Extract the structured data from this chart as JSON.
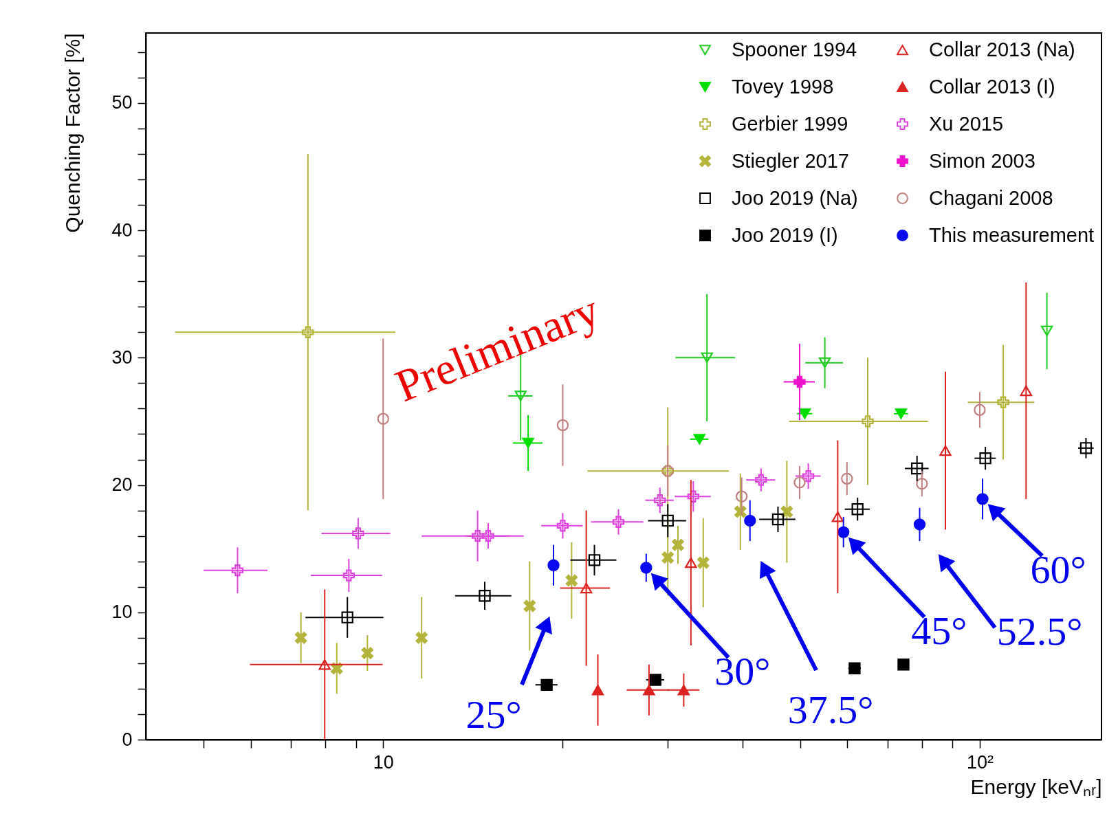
{
  "chart_data": {
    "type": "scatter",
    "xlabel": "Energy [keVₙᵣ]",
    "ylabel": "Quenching Factor [%]",
    "log": "x",
    "legend": "top right",
    "xlim": [
      4,
      160
    ],
    "ylim": [
      0,
      55.5
    ],
    "xticks": [
      {
        "value": 5,
        "label": null
      },
      {
        "value": 6,
        "label": null
      },
      {
        "value": 7,
        "label": null
      },
      {
        "value": 8,
        "label": null
      },
      {
        "value": 9,
        "label": null
      },
      10,
      {
        "value": 20,
        "label": null
      },
      {
        "value": 30,
        "label": null
      },
      {
        "value": 40,
        "label": null
      },
      {
        "value": 50,
        "label": null
      },
      {
        "value": 60,
        "label": null
      },
      {
        "value": 70,
        "label": null
      },
      {
        "value": 80,
        "label": null
      },
      {
        "value": 90,
        "label": null
      },
      {
        "value": 100,
        "label": "10²"
      }
    ],
    "yticks": [
      0,
      {
        "value": 2,
        "label": null
      },
      {
        "value": 4,
        "label": null
      },
      {
        "value": 6,
        "label": null
      },
      {
        "value": 8,
        "label": null
      },
      10,
      {
        "value": 12,
        "label": null
      },
      {
        "value": 14,
        "label": null
      },
      {
        "value": 16,
        "label": null
      },
      {
        "value": 18,
        "label": null
      },
      20,
      {
        "value": 22,
        "label": null
      },
      {
        "value": 24,
        "label": null
      },
      {
        "value": 26,
        "label": null
      },
      {
        "value": 28,
        "label": null
      },
      30,
      {
        "value": 32,
        "label": null
      },
      {
        "value": 34,
        "label": null
      },
      {
        "value": 36,
        "label": null
      },
      {
        "value": 38,
        "label": null
      },
      40,
      {
        "value": 42,
        "label": null
      },
      {
        "value": 44,
        "label": null
      },
      {
        "value": 46,
        "label": null
      },
      {
        "value": 48,
        "label": null
      },
      50,
      {
        "value": 52,
        "label": null
      },
      {
        "value": 54,
        "label": null
      }
    ],
    "series": [
      {
        "name": "Spooner 1994",
        "color": "#22cc22",
        "marker": "triangle-down-open",
        "x": [
          17.0,
          34.9,
          55.0,
          129.6
        ],
        "values": [
          27.0,
          30.0,
          29.6,
          32.1
        ],
        "errors": [
          3.5,
          5.0,
          2.0,
          3.0
        ],
        "xerrors": [
          0.8,
          4.0,
          4.0,
          null
        ]
      },
      {
        "name": "Tovey 1998",
        "color": "#00dd00",
        "marker": "triangle-down",
        "x": [
          17.5,
          33.9,
          50.9,
          73.8
        ],
        "values": [
          23.3,
          23.6,
          25.6,
          25.6
        ],
        "errors": [
          2.2,
          null,
          null,
          null
        ],
        "xerrors": [
          1.0,
          1.2,
          1.5,
          2.0
        ]
      },
      {
        "name": "Gerbier 1999",
        "color": "#b4b43c",
        "marker": "cross-open",
        "x": [
          7.48,
          30.0,
          64.9,
          109.5
        ],
        "values": [
          32.0,
          21.1,
          25.0,
          26.5
        ],
        "errors": [
          14.0,
          5.0,
          5.0,
          4.5
        ],
        "xerrors": [
          3.0,
          8.0,
          17.0,
          14.0
        ]
      },
      {
        "name": "Stiegler 2017",
        "color": "#b4b43c",
        "marker": "x",
        "x": [
          7.28,
          8.36,
          9.41,
          11.6,
          17.6,
          20.7,
          30.0,
          31.2,
          34.4,
          39.7,
          47.5
        ],
        "values": [
          8.0,
          5.6,
          6.8,
          8.0,
          10.5,
          12.5,
          14.3,
          15.3,
          13.9,
          17.9,
          17.9
        ],
        "errors": [
          2.0,
          2.0,
          1.4,
          3.2,
          3.5,
          3.0,
          3.0,
          1.5,
          3.5,
          3.0,
          4.0
        ]
      },
      {
        "name": "Joo 2019 (Na)",
        "color": "#000000",
        "marker": "square-open",
        "x": [
          8.71,
          14.8,
          22.6,
          30.0,
          45.9,
          62.4,
          78.5,
          102.2,
          150.7
        ],
        "values": [
          9.6,
          11.3,
          14.1,
          17.2,
          17.3,
          18.1,
          21.3,
          22.1,
          22.9
        ],
        "errors": [
          1.6,
          1.1,
          1.2,
          1.3,
          1.0,
          0.9,
          1.0,
          0.9,
          0.8
        ],
        "xerrors": [
          1.3,
          1.6,
          2.0,
          2.2,
          3.2,
          3.0,
          3.6,
          4.2,
          4.5
        ]
      },
      {
        "name": "Joo 2019 (I)",
        "color": "#000000",
        "marker": "square",
        "x": [
          18.8,
          28.6,
          61.7,
          74.5
        ],
        "values": [
          4.3,
          4.7,
          5.6,
          5.9
        ],
        "errors": [
          0.3,
          0.3,
          0.3,
          0.3
        ],
        "xerrors": [
          0.8,
          1.0,
          1.5,
          1.5
        ]
      },
      {
        "name": "Collar 2013 (Na)",
        "color": "#dd2222",
        "marker": "triangle-open",
        "x": [
          7.98,
          21.9,
          32.8,
          57.8,
          87.6,
          119.6
        ],
        "values": [
          5.9,
          11.9,
          13.9,
          17.5,
          22.7,
          27.4
        ],
        "errors": [
          5.9,
          6.1,
          6.5,
          6.0,
          6.2,
          8.5
        ],
        "xerrors": [
          2.0,
          2.1,
          null,
          null,
          null,
          null
        ]
      },
      {
        "name": "Collar 2013 (I)",
        "color": "#dd2222",
        "marker": "triangle",
        "x": [
          22.9,
          27.9,
          31.9
        ],
        "values": [
          3.9,
          3.9,
          3.9
        ],
        "errors": [
          2.8,
          2.0,
          1.3
        ],
        "xerrors": [
          null,
          2.3,
          2.0
        ]
      },
      {
        "name": "Xu 2015",
        "color": "#dd44dd",
        "marker": "cross-open",
        "x": [
          5.7,
          8.76,
          9.08,
          14.4,
          15.0,
          20.0,
          24.8,
          29.1,
          33.1,
          43.0,
          51.6
        ],
        "values": [
          13.3,
          12.9,
          16.2,
          16.0,
          16.0,
          16.8,
          17.1,
          18.8,
          19.1,
          20.4,
          20.7
        ],
        "errors": [
          1.8,
          1.3,
          1.2,
          2.0,
          1.0,
          1.0,
          1.0,
          1.0,
          1.2,
          0.9,
          1.0
        ],
        "xerrors": [
          0.7,
          1.2,
          1.2,
          2.8,
          1.3,
          1.6,
          2.5,
          1.6,
          2.3,
          2.4,
          2.5
        ]
      },
      {
        "name": "Simon 2003",
        "color": "#ee11cc",
        "marker": "cross",
        "x": [
          49.9
        ],
        "values": [
          28.1
        ],
        "errors": [
          3.0
        ],
        "xerrors": [
          3.0
        ]
      },
      {
        "name": "Chagani 2008",
        "color": "#c08080",
        "marker": "circle-open",
        "x": [
          10.0,
          20.0,
          30.0,
          39.9,
          49.9,
          59.9,
          80.0,
          100.0
        ],
        "values": [
          25.2,
          24.7,
          21.1,
          19.1,
          20.2,
          20.5,
          20.1,
          25.9
        ],
        "errors": [
          6.3,
          3.2,
          2.0,
          1.5,
          1.3,
          1.3,
          1.0,
          1.4
        ]
      },
      {
        "name": "This measurement",
        "color": "#0a0aee",
        "marker": "circle",
        "x": [
          19.3,
          27.6,
          41.2,
          59.1,
          79.3,
          101.1
        ],
        "values": [
          13.7,
          13.5,
          17.2,
          16.3,
          16.9,
          18.9
        ],
        "errors": [
          1.6,
          1.1,
          1.6,
          1.2,
          1.3,
          1.6
        ]
      }
    ],
    "annotations": [
      "Preliminary",
      "25°",
      {
        "text": "30°",
        "x": 27.6,
        "y": 13.5
      },
      "37.5°",
      {
        "text": "45°",
        "x": 59.1,
        "y": 16.3
      },
      "52.5°",
      {
        "text": "60°",
        "x": 101.1,
        "y": 18.9
      }
    ]
  }
}
